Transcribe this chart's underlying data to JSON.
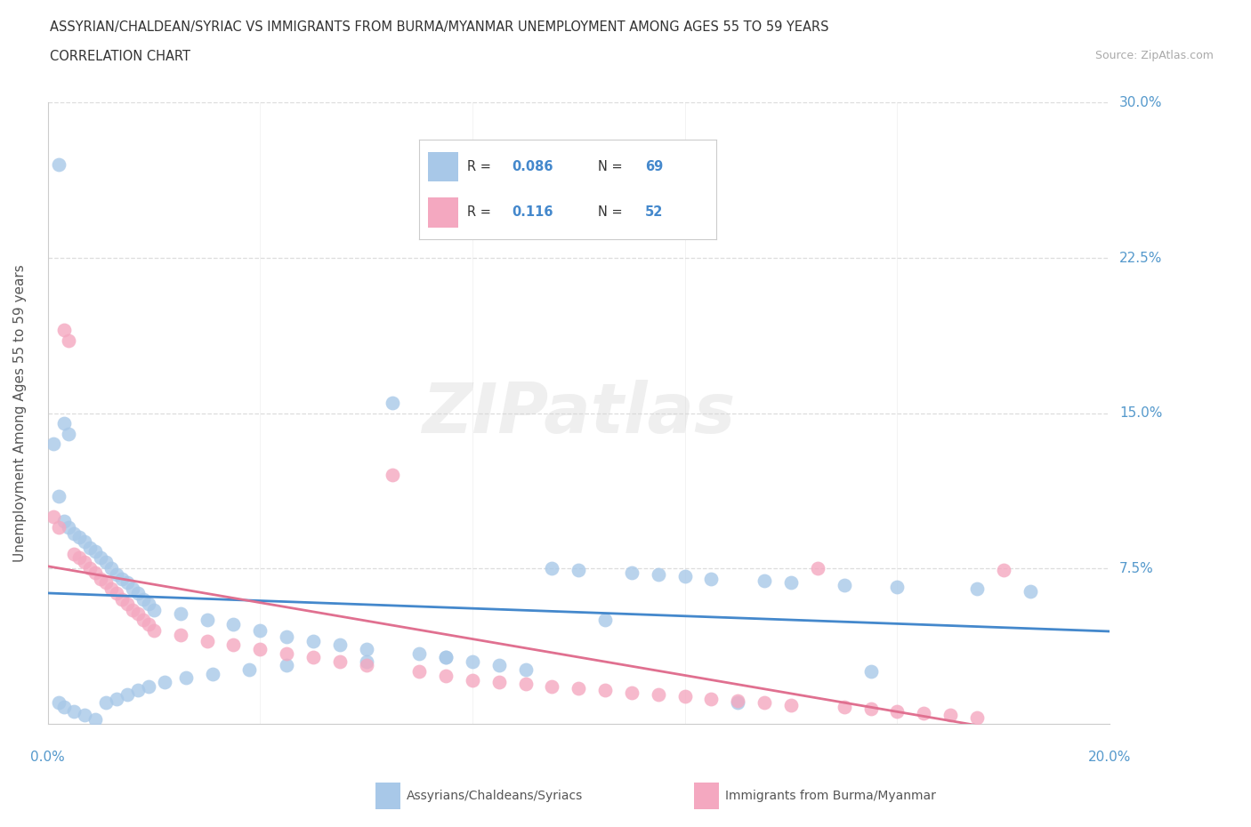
{
  "title_line1": "ASSYRIAN/CHALDEAN/SYRIAC VS IMMIGRANTS FROM BURMA/MYANMAR UNEMPLOYMENT AMONG AGES 55 TO 59 YEARS",
  "title_line2": "CORRELATION CHART",
  "source_text": "Source: ZipAtlas.com",
  "ylabel": "Unemployment Among Ages 55 to 59 years",
  "xlim": [
    0.0,
    0.2
  ],
  "ylim": [
    0.0,
    0.3
  ],
  "ytick_labels": [
    "7.5%",
    "15.0%",
    "22.5%",
    "30.0%"
  ],
  "ytick_values": [
    0.075,
    0.15,
    0.225,
    0.3
  ],
  "watermark": "ZIPatlas",
  "legend_blue_r": "0.086",
  "legend_blue_n": "69",
  "legend_pink_r": "0.116",
  "legend_pink_n": "52",
  "blue_color": "#a8c8e8",
  "pink_color": "#f4a8c0",
  "blue_line_color": "#4488cc",
  "pink_line_color": "#e07090",
  "axis_label_color": "#5599cc",
  "grid_color": "#dddddd",
  "blue_scatter_x": [
    0.002,
    0.003,
    0.004,
    0.001,
    0.002,
    0.003,
    0.004,
    0.005,
    0.006,
    0.007,
    0.008,
    0.009,
    0.01,
    0.011,
    0.012,
    0.013,
    0.014,
    0.015,
    0.016,
    0.017,
    0.018,
    0.019,
    0.02,
    0.025,
    0.03,
    0.035,
    0.04,
    0.045,
    0.05,
    0.055,
    0.06,
    0.065,
    0.07,
    0.075,
    0.08,
    0.085,
    0.09,
    0.095,
    0.1,
    0.105,
    0.11,
    0.115,
    0.12,
    0.125,
    0.13,
    0.135,
    0.14,
    0.15,
    0.155,
    0.16,
    0.175,
    0.185,
    0.002,
    0.003,
    0.005,
    0.007,
    0.009,
    0.011,
    0.013,
    0.015,
    0.017,
    0.019,
    0.022,
    0.026,
    0.031,
    0.038,
    0.045,
    0.06,
    0.075
  ],
  "blue_scatter_y": [
    0.27,
    0.145,
    0.14,
    0.135,
    0.11,
    0.098,
    0.095,
    0.092,
    0.09,
    0.088,
    0.085,
    0.083,
    0.08,
    0.078,
    0.075,
    0.072,
    0.07,
    0.068,
    0.065,
    0.063,
    0.06,
    0.058,
    0.055,
    0.053,
    0.05,
    0.048,
    0.045,
    0.042,
    0.04,
    0.038,
    0.036,
    0.155,
    0.034,
    0.032,
    0.03,
    0.028,
    0.026,
    0.075,
    0.074,
    0.05,
    0.073,
    0.072,
    0.071,
    0.07,
    0.01,
    0.069,
    0.068,
    0.067,
    0.025,
    0.066,
    0.065,
    0.064,
    0.01,
    0.008,
    0.006,
    0.004,
    0.002,
    0.01,
    0.012,
    0.014,
    0.016,
    0.018,
    0.02,
    0.022,
    0.024,
    0.026,
    0.028,
    0.03,
    0.032
  ],
  "pink_scatter_x": [
    0.001,
    0.002,
    0.003,
    0.004,
    0.005,
    0.006,
    0.007,
    0.008,
    0.009,
    0.01,
    0.011,
    0.012,
    0.013,
    0.014,
    0.015,
    0.016,
    0.017,
    0.018,
    0.019,
    0.02,
    0.025,
    0.03,
    0.035,
    0.04,
    0.045,
    0.05,
    0.055,
    0.06,
    0.065,
    0.07,
    0.075,
    0.08,
    0.085,
    0.09,
    0.095,
    0.1,
    0.105,
    0.11,
    0.115,
    0.12,
    0.125,
    0.13,
    0.135,
    0.14,
    0.145,
    0.15,
    0.155,
    0.16,
    0.165,
    0.17,
    0.175,
    0.18
  ],
  "pink_scatter_y": [
    0.1,
    0.095,
    0.19,
    0.185,
    0.082,
    0.08,
    0.078,
    0.075,
    0.073,
    0.07,
    0.068,
    0.065,
    0.063,
    0.06,
    0.058,
    0.055,
    0.053,
    0.05,
    0.048,
    0.045,
    0.043,
    0.04,
    0.038,
    0.036,
    0.034,
    0.032,
    0.03,
    0.028,
    0.12,
    0.025,
    0.023,
    0.021,
    0.02,
    0.019,
    0.018,
    0.017,
    0.016,
    0.015,
    0.014,
    0.013,
    0.012,
    0.011,
    0.01,
    0.009,
    0.075,
    0.008,
    0.007,
    0.006,
    0.005,
    0.004,
    0.003,
    0.074
  ]
}
